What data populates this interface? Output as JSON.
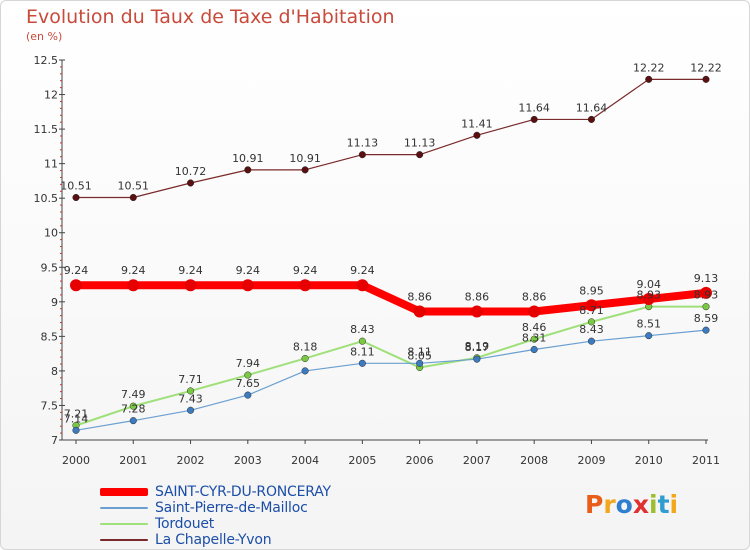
{
  "title": "Evolution du Taux de Taxe d'Habitation",
  "subtitle": "(en %)",
  "logo": {
    "text": "Proxiti",
    "colors": [
      "#e85d1a",
      "#f2a81d",
      "#2f7fd0",
      "#e03131",
      "#9dbe2f",
      "#2f9dd0",
      "#f2a81d"
    ]
  },
  "chart_data": {
    "type": "line",
    "x": [
      "2000",
      "2001",
      "2002",
      "2003",
      "2004",
      "2005",
      "2006",
      "2007",
      "2008",
      "2009",
      "2010",
      "2011"
    ],
    "ylim": [
      7,
      12.5
    ],
    "yticks": [
      "7",
      "7.5",
      "8",
      "8.5",
      "9",
      "9.5",
      "10",
      "10.5",
      "11",
      "11.5",
      "12",
      "12.5"
    ],
    "ytick_values": [
      7,
      7.5,
      8,
      8.5,
      9,
      9.5,
      10,
      10.5,
      11,
      11.5,
      12,
      12.5
    ],
    "grid": false,
    "legend_position": "bottom-left",
    "series": [
      {
        "name": "La Chapelle-Yvon",
        "color": "#7a2a2a",
        "marker": "#5a1010",
        "width": 1.2,
        "values": [
          10.51,
          10.51,
          10.72,
          10.91,
          10.91,
          11.13,
          11.13,
          11.41,
          11.64,
          11.64,
          12.22,
          12.22
        ],
        "labels": [
          "10.51",
          "10.51",
          "10.72",
          "10.91",
          "10.91",
          "11.13",
          "11.13",
          "11.41",
          "11.64",
          "11.64",
          "12.22",
          "12.22"
        ]
      },
      {
        "name": "Tordouet",
        "color": "#9fe07a",
        "marker": "#7ac943",
        "width": 2,
        "values": [
          7.21,
          7.49,
          7.71,
          7.94,
          8.18,
          8.43,
          8.05,
          8.19,
          8.46,
          8.71,
          8.93,
          8.93
        ],
        "labels": [
          "7.21",
          "7.49",
          "7.71",
          "7.94",
          "8.18",
          "8.43",
          "8.05",
          "8.19",
          "8.46",
          "8.71",
          "8.93",
          "8.93"
        ]
      },
      {
        "name": "Saint-Pierre-de-Mailloc",
        "color": "#6a9fd0",
        "marker": "#3c7bc0",
        "width": 1.2,
        "values": [
          7.14,
          7.28,
          7.43,
          7.65,
          8.0,
          8.11,
          8.11,
          8.17,
          8.31,
          8.43,
          8.51,
          8.59
        ],
        "labels": [
          "7.14",
          "7.28",
          "7.43",
          "7.65",
          "",
          "8.11",
          "8.11",
          "8.17",
          "8.31",
          "8.43",
          "8.51",
          "8.59"
        ]
      },
      {
        "name": "SAINT-CYR-DU-RONCERAY",
        "color": "#ff0000",
        "marker": "#e60000",
        "width": 8,
        "values": [
          9.24,
          9.24,
          9.24,
          9.24,
          9.24,
          9.24,
          8.86,
          8.86,
          8.86,
          8.95,
          9.04,
          9.13
        ],
        "labels": [
          "9.24",
          "9.24",
          "9.24",
          "9.24",
          "9.24",
          "9.24",
          "8.86",
          "8.86",
          "8.86",
          "8.95",
          "9.04",
          "9.13"
        ]
      }
    ]
  },
  "legend": [
    {
      "label": "SAINT-CYR-DU-RONCERAY",
      "color": "#ff0000",
      "height": 8
    },
    {
      "label": "Saint-Pierre-de-Mailloc",
      "color": "#6a9fd0",
      "height": 2
    },
    {
      "label": "Tordouet",
      "color": "#9fe07a",
      "height": 2
    },
    {
      "label": "La Chapelle-Yvon",
      "color": "#7a2a2a",
      "height": 2
    }
  ]
}
